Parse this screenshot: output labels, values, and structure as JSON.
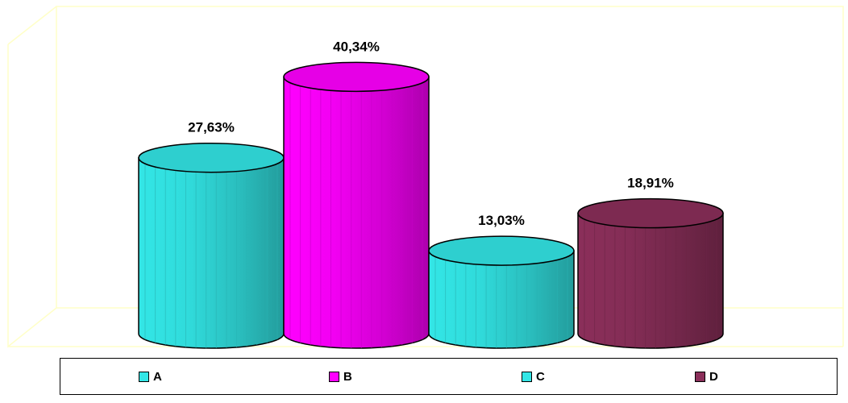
{
  "chart_data": {
    "type": "bar",
    "style": "3d-cylinder",
    "categories": [
      "A",
      "B",
      "C",
      "D"
    ],
    "values": [
      27.63,
      40.34,
      13.03,
      18.91
    ],
    "data_labels": [
      "27,63%",
      "40,34%",
      "13,03%",
      "18,91%"
    ],
    "colors": [
      "#33E6E6",
      "#FF00FF",
      "#33E6E6",
      "#8B2F5A"
    ],
    "title": "",
    "xlabel": "",
    "ylabel": "",
    "ylim": [
      0,
      45
    ],
    "grid": false,
    "legend": "bottom"
  },
  "legend": {
    "items": [
      {
        "label": "A",
        "color": "#33E6E6"
      },
      {
        "label": "B",
        "color": "#FF00FF"
      },
      {
        "label": "C",
        "color": "#33E6E6"
      },
      {
        "label": "D",
        "color": "#8B2F5A"
      }
    ]
  }
}
